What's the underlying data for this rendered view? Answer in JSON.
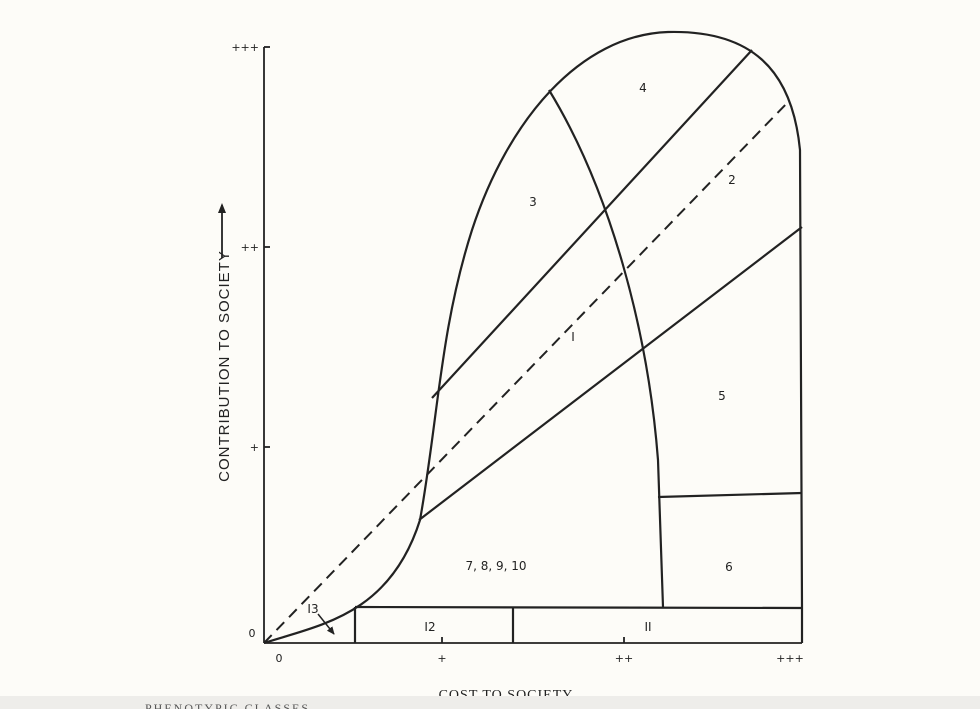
{
  "diagram": {
    "y_axis": {
      "label": "CONTRIBUTION TO SOCIETY",
      "ticks": [
        "+++",
        "++",
        "+",
        "0"
      ]
    },
    "x_axis": {
      "label": "COST TO SOCIETY",
      "ticks": [
        "0",
        "+",
        "++",
        "+++"
      ]
    },
    "regions": {
      "r1": "I",
      "r2": "2",
      "r3": "3",
      "r4": "4",
      "r5": "5",
      "r6": "6",
      "r7": "7, 8, 9, 10",
      "r11": "II",
      "r12": "I2",
      "r13": "I3"
    },
    "cut_text": "PHENOTYPIC CLASSES"
  }
}
